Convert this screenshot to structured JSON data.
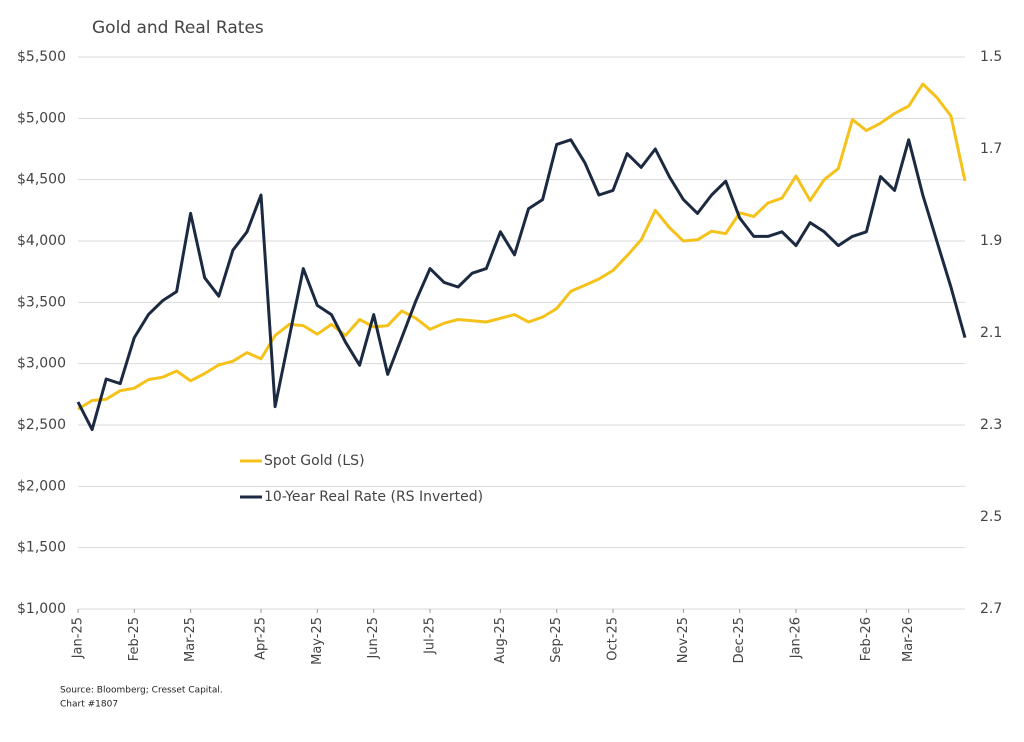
{
  "chart_data": {
    "type": "line",
    "title": "Gold and Real Rates",
    "note": "Source: Bloomberg; Cresset Capital.",
    "chart_id": "Chart #1807",
    "categories": [
      "Jan-25",
      null,
      null,
      null,
      "Feb-25",
      null,
      null,
      null,
      "Mar-25",
      null,
      null,
      null,
      null,
      "Apr-25",
      null,
      null,
      null,
      "May-25",
      null,
      null,
      null,
      "Jun-25",
      null,
      null,
      null,
      "Jul-25",
      null,
      null,
      null,
      null,
      "Aug-25",
      null,
      null,
      null,
      "Sep-25",
      null,
      null,
      null,
      "Oct-25",
      null,
      null,
      null,
      null,
      "Nov-25",
      null,
      null,
      null,
      "Dec-25",
      null,
      null,
      null,
      "Jan-26",
      null,
      null,
      null,
      null,
      "Feb-26",
      null,
      null,
      "Mar-26",
      null,
      null,
      null,
      null
    ],
    "series": [
      {
        "name": "Spot Gold (LS)",
        "color": "#f5c21b",
        "axis": "y",
        "values": [
          2630,
          2700,
          2710,
          2780,
          2800,
          2870,
          2890,
          2940,
          2860,
          2920,
          2990,
          3020,
          3090,
          3040,
          3230,
          3320,
          3310,
          3240,
          3320,
          3230,
          3360,
          3300,
          3310,
          3430,
          3370,
          3280,
          3330,
          3360,
          3350,
          3340,
          3370,
          3400,
          3340,
          3380,
          3450,
          3590,
          3640,
          3690,
          3760,
          3880,
          4010,
          4250,
          4110,
          4000,
          4010,
          4080,
          4060,
          4230,
          4200,
          4310,
          4350,
          4530,
          4330,
          4500,
          4590,
          4990,
          4900,
          4960,
          5040,
          5100,
          5280,
          5170,
          5020,
          4490
        ]
      },
      {
        "name": "10-Year Real Rate (RS Inverted)",
        "color": "#1b2a41",
        "axis": "y2",
        "values": [
          2.25,
          2.31,
          2.2,
          2.21,
          2.11,
          2.06,
          2.03,
          2.01,
          1.84,
          1.98,
          2.02,
          1.92,
          1.88,
          1.8,
          2.26,
          2.11,
          1.96,
          2.04,
          2.06,
          2.12,
          2.17,
          2.06,
          2.19,
          2.11,
          2.03,
          1.96,
          1.99,
          2.0,
          1.97,
          1.96,
          1.88,
          1.93,
          1.83,
          1.81,
          1.69,
          1.68,
          1.73,
          1.8,
          1.79,
          1.71,
          1.74,
          1.7,
          1.76,
          1.81,
          1.84,
          1.8,
          1.77,
          1.85,
          1.89,
          1.89,
          1.88,
          1.91,
          1.86,
          1.88,
          1.91,
          1.89,
          1.88,
          1.76,
          1.79,
          1.68,
          1.8,
          1.9,
          2.0,
          2.11
        ]
      }
    ],
    "ylim": [
      1000,
      5500
    ],
    "yticks": [
      {
        "value": 1000,
        "label": "$1,000"
      },
      {
        "value": 1500,
        "label": "$1,500"
      },
      {
        "value": 2000,
        "label": "$2,000"
      },
      {
        "value": 2500,
        "label": "$2,500"
      },
      {
        "value": 3000,
        "label": "$3,000"
      },
      {
        "value": 3500,
        "label": "$3,500"
      },
      {
        "value": 4000,
        "label": "$4,000"
      },
      {
        "value": 4500,
        "label": "$4,500"
      },
      {
        "value": 5000,
        "label": "$5,000"
      },
      {
        "value": 5500,
        "label": "$5,500"
      }
    ],
    "y2lim": [
      2.7,
      1.5
    ],
    "y2ticks": [
      1.5,
      1.7,
      1.9,
      2.1,
      2.3,
      2.5,
      2.7
    ],
    "grid": true
  }
}
